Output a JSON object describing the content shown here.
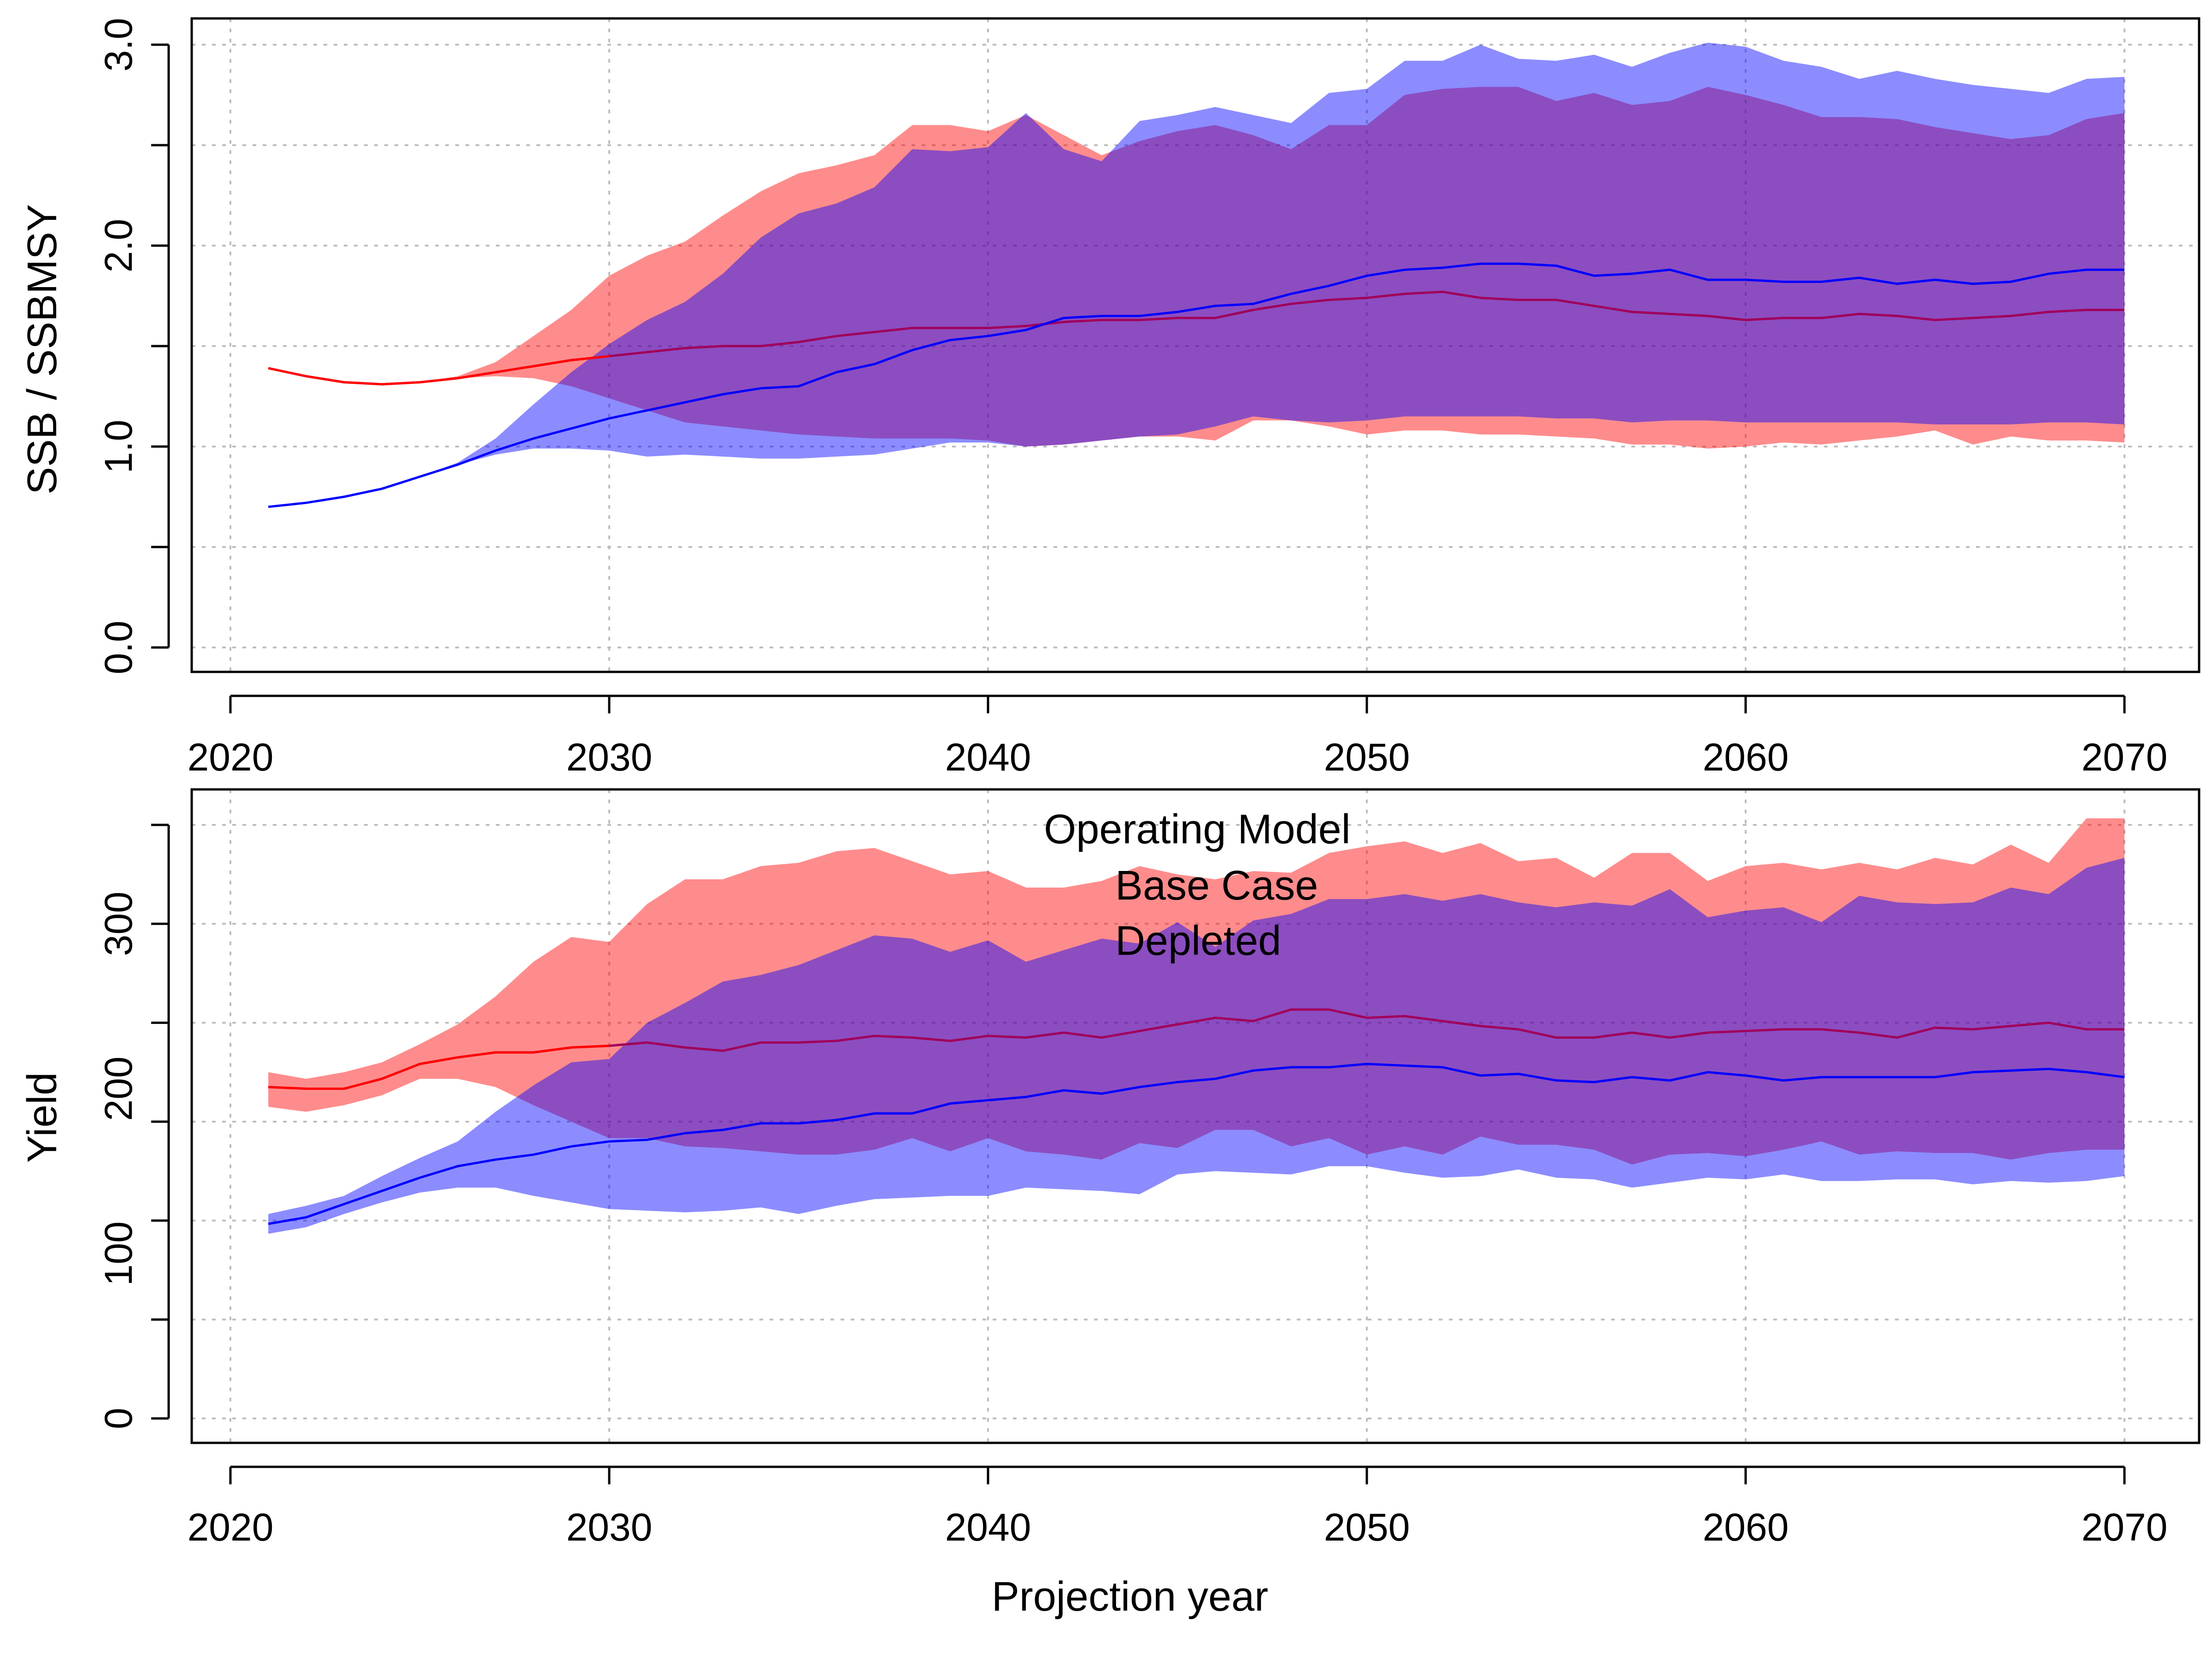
{
  "colors": {
    "base_case": "#ff0000",
    "depleted": "#0000ff",
    "base_band": "#ff0000",
    "depleted_band": "#0000ff",
    "overlap_median_line": "#a0005a",
    "grid": "#bdbdbd"
  },
  "legend": {
    "title": "Operating Model",
    "items": [
      {
        "label": "Base Case",
        "color": "#ff0000"
      },
      {
        "label": "Depleted",
        "color": "#0000ff"
      }
    ]
  },
  "chart_data": [
    {
      "type": "area",
      "title": "",
      "xlabel": "",
      "ylabel": "SSB / SSBMSY",
      "xlim": [
        2020,
        2070
      ],
      "ylim": [
        0,
        3
      ],
      "x_ticks": [
        "2020",
        "2030",
        "2040",
        "2050",
        "2060",
        "2070"
      ],
      "y_ticks": [
        "0.0",
        "1.0",
        "2.0",
        "3.0"
      ],
      "grid": true,
      "x_start": 2021,
      "series": [
        {
          "name": "Base Case",
          "color": "#ff0000",
          "median": [
            1.39,
            1.35,
            1.32,
            1.31,
            1.32,
            1.34,
            1.37,
            1.4,
            1.43,
            1.45,
            1.47,
            1.49,
            1.5,
            1.5,
            1.52,
            1.55,
            1.57,
            1.59,
            1.59,
            1.59,
            1.6,
            1.62,
            1.63,
            1.63,
            1.64,
            1.64,
            1.68,
            1.71,
            1.73,
            1.74,
            1.76,
            1.77,
            1.74,
            1.73,
            1.73,
            1.7,
            1.67,
            1.66,
            1.65,
            1.63,
            1.64,
            1.64,
            1.66,
            1.65,
            1.63,
            1.64,
            1.65,
            1.67,
            1.68,
            1.68
          ],
          "lower": [
            1.39,
            1.35,
            1.32,
            1.31,
            1.32,
            1.34,
            1.35,
            1.34,
            1.3,
            1.24,
            1.18,
            1.12,
            1.1,
            1.08,
            1.06,
            1.05,
            1.04,
            1.04,
            1.04,
            1.03,
            1.0,
            1.01,
            1.03,
            1.05,
            1.05,
            1.03,
            1.13,
            1.13,
            1.1,
            1.06,
            1.08,
            1.08,
            1.06,
            1.06,
            1.05,
            1.04,
            1.01,
            1.01,
            0.99,
            1.0,
            1.02,
            1.01,
            1.03,
            1.05,
            1.08,
            1.01,
            1.05,
            1.03,
            1.03,
            1.02
          ],
          "upper": [
            1.39,
            1.35,
            1.32,
            1.31,
            1.32,
            1.35,
            1.42,
            1.55,
            1.68,
            1.85,
            1.95,
            2.02,
            2.15,
            2.27,
            2.36,
            2.4,
            2.45,
            2.6,
            2.6,
            2.57,
            2.65,
            2.55,
            2.45,
            2.52,
            2.57,
            2.6,
            2.55,
            2.48,
            2.6,
            2.6,
            2.75,
            2.78,
            2.79,
            2.79,
            2.72,
            2.76,
            2.7,
            2.72,
            2.79,
            2.75,
            2.7,
            2.64,
            2.64,
            2.63,
            2.59,
            2.56,
            2.53,
            2.55,
            2.63,
            2.66
          ]
        },
        {
          "name": "Depleted",
          "color": "#0000ff",
          "median": [
            0.7,
            0.72,
            0.75,
            0.79,
            0.85,
            0.91,
            0.98,
            1.04,
            1.09,
            1.14,
            1.18,
            1.22,
            1.26,
            1.29,
            1.3,
            1.37,
            1.41,
            1.48,
            1.53,
            1.55,
            1.58,
            1.64,
            1.65,
            1.65,
            1.67,
            1.7,
            1.71,
            1.76,
            1.8,
            1.85,
            1.88,
            1.89,
            1.91,
            1.91,
            1.9,
            1.85,
            1.86,
            1.88,
            1.83,
            1.83,
            1.82,
            1.82,
            1.84,
            1.81,
            1.83,
            1.81,
            1.82,
            1.86,
            1.88,
            1.88
          ],
          "lower": [
            0.7,
            0.72,
            0.75,
            0.79,
            0.85,
            0.91,
            0.96,
            0.99,
            0.99,
            0.98,
            0.95,
            0.96,
            0.95,
            0.94,
            0.94,
            0.95,
            0.96,
            0.99,
            1.02,
            1.02,
            1.0,
            1.01,
            1.03,
            1.05,
            1.06,
            1.1,
            1.15,
            1.13,
            1.12,
            1.13,
            1.15,
            1.15,
            1.15,
            1.15,
            1.14,
            1.14,
            1.12,
            1.13,
            1.13,
            1.12,
            1.12,
            1.12,
            1.12,
            1.12,
            1.11,
            1.11,
            1.11,
            1.12,
            1.12,
            1.11
          ],
          "upper": [
            0.7,
            0.72,
            0.75,
            0.79,
            0.85,
            0.92,
            1.04,
            1.21,
            1.37,
            1.51,
            1.63,
            1.72,
            1.86,
            2.04,
            2.16,
            2.21,
            2.29,
            2.48,
            2.47,
            2.49,
            2.66,
            2.48,
            2.42,
            2.62,
            2.65,
            2.69,
            2.65,
            2.61,
            2.76,
            2.78,
            2.92,
            2.92,
            3.0,
            2.93,
            2.92,
            2.95,
            2.89,
            2.96,
            3.01,
            2.99,
            2.92,
            2.89,
            2.83,
            2.87,
            2.83,
            2.8,
            2.78,
            2.76,
            2.83,
            2.84
          ]
        }
      ]
    },
    {
      "type": "area",
      "title": "",
      "xlabel": "Projection year",
      "ylabel": "Yield",
      "xlim": [
        2020,
        2070
      ],
      "ylim": [
        0,
        360
      ],
      "x_ticks": [
        "2020",
        "2030",
        "2040",
        "2050",
        "2060",
        "2070"
      ],
      "y_ticks": [
        "0",
        "100",
        "200",
        "300"
      ],
      "grid": true,
      "x_start": 2021,
      "series": [
        {
          "name": "Base Case",
          "color": "#ff0000",
          "median": [
            201,
            200,
            200,
            206,
            215,
            219,
            222,
            222,
            225,
            226,
            228,
            225,
            223,
            228,
            228,
            229,
            232,
            231,
            229,
            232,
            231,
            234,
            231,
            235,
            239,
            243,
            241,
            248,
            248,
            243,
            244,
            241,
            238,
            236,
            231,
            231,
            234,
            231,
            234,
            235,
            236,
            236,
            234,
            231,
            237,
            236,
            238,
            240,
            236,
            236
          ],
          "lower": [
            189,
            186,
            190,
            196,
            206,
            206,
            201,
            190,
            180,
            170,
            170,
            165,
            164,
            162,
            160,
            160,
            163,
            170,
            162,
            170,
            162,
            160,
            157,
            167,
            164,
            175,
            175,
            165,
            170,
            160,
            165,
            160,
            171,
            166,
            166,
            163,
            154,
            160,
            161,
            159,
            163,
            168,
            160,
            162,
            161,
            161,
            157,
            161,
            163,
            163
          ],
          "upper": [
            210,
            206,
            210,
            216,
            227,
            239,
            256,
            277,
            292,
            289,
            312,
            327,
            327,
            335,
            337,
            344,
            346,
            338,
            330,
            332,
            322,
            322,
            326,
            335,
            330,
            327,
            332,
            331,
            343,
            347,
            350,
            343,
            349,
            338,
            340,
            328,
            343,
            343,
            326,
            335,
            337,
            333,
            337,
            333,
            340,
            336,
            348,
            337,
            364,
            364
          ]
        },
        {
          "name": "Depleted",
          "color": "#0000ff",
          "median": [
            118,
            122,
            130,
            138,
            146,
            153,
            157,
            160,
            165,
            168,
            169,
            173,
            175,
            179,
            179,
            181,
            185,
            185,
            191,
            193,
            195,
            199,
            197,
            201,
            204,
            206,
            211,
            213,
            213,
            215,
            214,
            213,
            208,
            209,
            205,
            204,
            207,
            205,
            210,
            208,
            205,
            207,
            207,
            207,
            207,
            210,
            211,
            212,
            210,
            207
          ],
          "lower": [
            112,
            116,
            124,
            131,
            137,
            140,
            140,
            135,
            131,
            127,
            126,
            125,
            126,
            128,
            124,
            129,
            133,
            134,
            135,
            135,
            140,
            139,
            138,
            136,
            148,
            150,
            149,
            148,
            153,
            153,
            149,
            146,
            147,
            151,
            146,
            145,
            140,
            143,
            146,
            145,
            148,
            144,
            144,
            145,
            145,
            142,
            144,
            143,
            144,
            147
          ],
          "upper": [
            124,
            129,
            135,
            147,
            158,
            168,
            186,
            202,
            216,
            218,
            240,
            252,
            265,
            269,
            275,
            284,
            293,
            291,
            283,
            290,
            277,
            284,
            291,
            288,
            301,
            286,
            302,
            306,
            315,
            315,
            318,
            314,
            318,
            313,
            310,
            313,
            311,
            321,
            304,
            308,
            310,
            301,
            317,
            313,
            312,
            313,
            322,
            318,
            334,
            340
          ]
        }
      ]
    }
  ]
}
